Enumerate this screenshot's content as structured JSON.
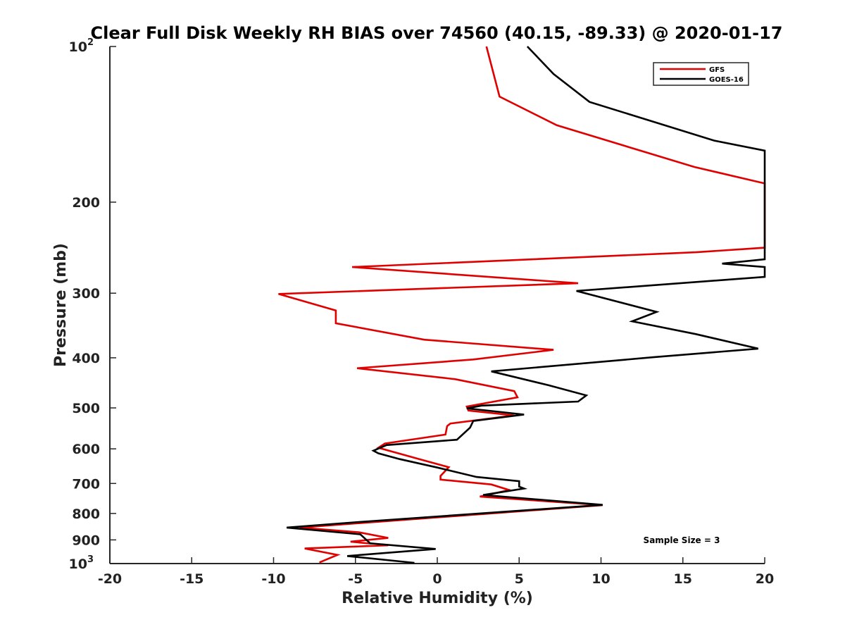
{
  "chart_data": {
    "type": "line",
    "title": "Clear Full Disk Weekly RH BIAS over 74560 (40.15, -89.33) @ 2020-01-17",
    "xlabel": "Relative Humidity (%)",
    "ylabel": "Pressure (mb)",
    "xlim": [
      -20,
      20
    ],
    "ylim": [
      100,
      1000
    ],
    "y_scale": "log",
    "y_reversed": true,
    "grid": false,
    "legend_position": "top-right",
    "x_ticks": [
      "-20",
      "-15",
      "-10",
      "-5",
      "0",
      "5",
      "10",
      "15",
      "20"
    ],
    "x_tick_values": [
      -20,
      -15,
      -10,
      -5,
      0,
      5,
      10,
      15,
      20
    ],
    "y_ticks": [
      {
        "value": 100,
        "label": "10",
        "sup": "2"
      },
      {
        "value": 200,
        "label": "200",
        "sup": ""
      },
      {
        "value": 300,
        "label": "300",
        "sup": ""
      },
      {
        "value": 400,
        "label": "400",
        "sup": ""
      },
      {
        "value": 500,
        "label": "500",
        "sup": ""
      },
      {
        "value": 600,
        "label": "600",
        "sup": ""
      },
      {
        "value": 700,
        "label": "700",
        "sup": ""
      },
      {
        "value": 800,
        "label": "800",
        "sup": ""
      },
      {
        "value": 900,
        "label": "900",
        "sup": ""
      },
      {
        "value": 1000,
        "label": "10",
        "sup": "3"
      }
    ],
    "annotation": "Sample Size = 3",
    "series": [
      {
        "name": "GFS",
        "color": "#e00000",
        "points": [
          [
            3.0,
            100
          ],
          [
            3.8,
            125
          ],
          [
            7.3,
            142
          ],
          [
            15.7,
            171
          ],
          [
            20,
            184
          ],
          [
            20,
            245
          ],
          [
            15.8,
            250
          ],
          [
            -5.2,
            267
          ],
          [
            8.6,
            287
          ],
          [
            -9.7,
            301
          ],
          [
            -6.2,
            324
          ],
          [
            -6.2,
            343
          ],
          [
            -0.8,
            369
          ],
          [
            7.1,
            386
          ],
          [
            2.2,
            403
          ],
          [
            -4.9,
            419
          ],
          [
            1.1,
            440
          ],
          [
            4.7,
            464
          ],
          [
            4.9,
            477
          ],
          [
            1.8,
            497
          ],
          [
            1.9,
            506
          ],
          [
            4.7,
            517
          ],
          [
            0.8,
            536
          ],
          [
            0.6,
            542
          ],
          [
            0.5,
            563
          ],
          [
            -3.2,
            586
          ],
          [
            -3.6,
            597
          ],
          [
            -1.1,
            628
          ],
          [
            0.7,
            651
          ],
          [
            0.2,
            677
          ],
          [
            0.2,
            688
          ],
          [
            3.3,
            703
          ],
          [
            4.4,
            721
          ],
          [
            2.6,
            742
          ],
          [
            10.1,
            771
          ],
          [
            -8.4,
            852
          ],
          [
            -4.8,
            870
          ],
          [
            -3.0,
            892
          ],
          [
            -5.3,
            907
          ],
          [
            -3.0,
            922
          ],
          [
            -8.1,
            935
          ],
          [
            -6.1,
            962
          ],
          [
            -7.2,
            995
          ]
        ]
      },
      {
        "name": "GOES-16",
        "color": "#000000",
        "points": [
          [
            5.5,
            100
          ],
          [
            7.1,
            113
          ],
          [
            9.3,
            128
          ],
          [
            16.9,
            152
          ],
          [
            20,
            159
          ],
          [
            20,
            258
          ],
          [
            17.4,
            263
          ],
          [
            20,
            267
          ],
          [
            20,
            279
          ],
          [
            8.5,
            297
          ],
          [
            13.4,
            326
          ],
          [
            11.9,
            340
          ],
          [
            15.8,
            360
          ],
          [
            19.6,
            384
          ],
          [
            13.2,
            399
          ],
          [
            3.3,
            425
          ],
          [
            6.8,
            452
          ],
          [
            9.1,
            473
          ],
          [
            8.6,
            486
          ],
          [
            2.7,
            495
          ],
          [
            1.8,
            501
          ],
          [
            5.3,
            515
          ],
          [
            2.2,
            530
          ],
          [
            2.0,
            546
          ],
          [
            1.2,
            576
          ],
          [
            -3.1,
            590
          ],
          [
            -3.9,
            605
          ],
          [
            -3.6,
            612
          ],
          [
            -2.3,
            628
          ],
          [
            0.0,
            652
          ],
          [
            2.4,
            680
          ],
          [
            5.0,
            693
          ],
          [
            5.0,
            710
          ],
          [
            5.3,
            716
          ],
          [
            2.8,
            737
          ],
          [
            10.1,
            770
          ],
          [
            -5.0,
            832
          ],
          [
            -9.2,
            852
          ],
          [
            -4.7,
            878
          ],
          [
            -4.1,
            914
          ],
          [
            -0.1,
            937
          ],
          [
            -5.5,
            967
          ],
          [
            -1.4,
            997
          ]
        ]
      }
    ]
  }
}
